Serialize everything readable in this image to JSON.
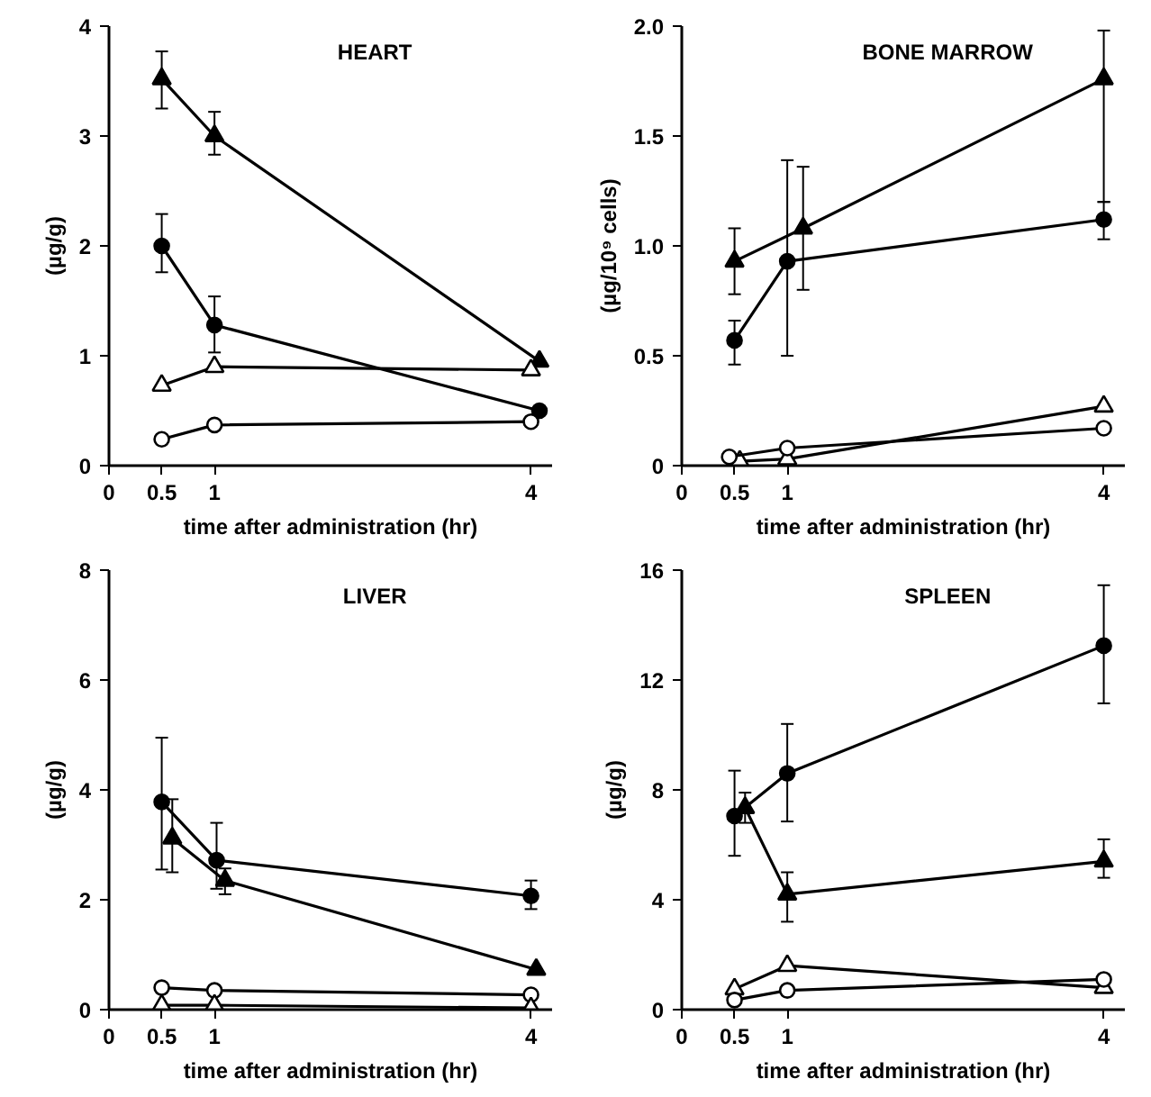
{
  "chart_data": [
    {
      "type": "line",
      "title": "HEART",
      "xlabel": "time after administration (hr)",
      "ylabel": "(µg/g)",
      "xlim": [
        0,
        4.2
      ],
      "xticks": [
        0,
        0.5,
        1,
        4
      ],
      "ylim": [
        0,
        4
      ],
      "yticks": [
        0,
        1,
        2,
        3,
        4
      ],
      "grid": false,
      "line_style": "solid",
      "series": [
        {
          "color": "#000000",
          "marker": "triangle",
          "x": [
            0.5,
            1,
            4.08
          ],
          "values": [
            3.52,
            3.0,
            0.95
          ],
          "errors": [
            [
              3.25,
              3.77
            ],
            [
              2.83,
              3.22
            ],
            null
          ]
        },
        {
          "color": "#000000",
          "marker": "circle",
          "x": [
            0.5,
            1,
            4.08
          ],
          "values": [
            2.0,
            1.28,
            0.5
          ],
          "errors": [
            [
              1.76,
              2.29
            ],
            [
              1.03,
              1.54
            ],
            null
          ]
        },
        {
          "color": "#ffffff",
          "marker": "triangle",
          "x": [
            0.5,
            1,
            4
          ],
          "values": [
            0.73,
            0.9,
            0.87
          ]
        },
        {
          "color": "#ffffff",
          "marker": "circle",
          "x": [
            0.5,
            1,
            4
          ],
          "values": [
            0.24,
            0.37,
            0.4
          ]
        }
      ]
    },
    {
      "type": "line",
      "title": "BONE MARROW",
      "xlabel": "time after administration (hr)",
      "ylabel": "(µg/10⁹ cells)",
      "xlim": [
        0,
        4.2
      ],
      "xticks": [
        0,
        0.5,
        1,
        4
      ],
      "ylim": [
        0,
        2
      ],
      "yticks": [
        0,
        0.5,
        {
          "value": 1,
          "label": "1.0"
        },
        1.5,
        {
          "value": 2,
          "label": "2.0"
        }
      ],
      "grid": false,
      "line_style": "solid",
      "series": [
        {
          "color": "#000000",
          "marker": "triangle",
          "x": [
            0.5,
            1.15,
            4
          ],
          "values": [
            0.93,
            1.08,
            1.76
          ],
          "errors": [
            [
              0.78,
              1.08
            ],
            [
              0.8,
              1.36
            ],
            [
              1.2,
              1.98
            ]
          ]
        },
        {
          "color": "#000000",
          "marker": "circle",
          "x": [
            0.5,
            1,
            4
          ],
          "values": [
            0.57,
            0.93,
            1.12
          ],
          "errors": [
            [
              0.46,
              0.66
            ],
            [
              0.5,
              1.39
            ],
            [
              1.03,
              1.2
            ]
          ]
        },
        {
          "color": "#ffffff",
          "marker": "triangle",
          "x": [
            0.55,
            1,
            4
          ],
          "values": [
            0.02,
            0.03,
            0.27
          ]
        },
        {
          "color": "#ffffff",
          "marker": "circle",
          "x": [
            0.45,
            1,
            4
          ],
          "values": [
            0.04,
            0.08,
            0.17
          ]
        }
      ]
    },
    {
      "type": "line",
      "title": "LIVER",
      "xlabel": "time after administration (hr)",
      "ylabel": "(µg/g)",
      "xlim": [
        0,
        4.2
      ],
      "xticks": [
        0,
        0.5,
        1,
        4
      ],
      "ylim": [
        0,
        8
      ],
      "yticks": [
        0,
        2,
        4,
        6,
        8
      ],
      "grid": false,
      "line_style": "solid",
      "series": [
        {
          "color": "#000000",
          "marker": "circle",
          "x": [
            0.5,
            1.02,
            4
          ],
          "values": [
            3.78,
            2.72,
            2.07
          ],
          "errors": [
            [
              2.55,
              4.95
            ],
            [
              2.2,
              3.4
            ],
            [
              1.83,
              2.35
            ]
          ]
        },
        {
          "color": "#000000",
          "marker": "triangle",
          "x": [
            0.6,
            1.1,
            4.05
          ],
          "values": [
            3.12,
            2.35,
            0.73
          ],
          "errors": [
            [
              2.5,
              3.83
            ],
            [
              2.1,
              2.57
            ],
            null
          ]
        },
        {
          "color": "#ffffff",
          "marker": "circle",
          "x": [
            0.5,
            1,
            4
          ],
          "values": [
            0.4,
            0.35,
            0.27
          ]
        },
        {
          "color": "#ffffff",
          "marker": "triangle",
          "x": [
            0.5,
            1,
            4
          ],
          "values": [
            0.08,
            0.08,
            0.03
          ]
        }
      ]
    },
    {
      "type": "line",
      "title": "SPLEEN",
      "xlabel": "time after administration (hr)",
      "ylabel": "(µg/g)",
      "xlim": [
        0,
        4.2
      ],
      "xticks": [
        0,
        0.5,
        1,
        4
      ],
      "ylim": [
        0,
        16
      ],
      "yticks": [
        0,
        4,
        8,
        12,
        16
      ],
      "grid": false,
      "line_style": "solid",
      "series": [
        {
          "color": "#000000",
          "marker": "circle",
          "x": [
            0.5,
            1,
            4
          ],
          "values": [
            7.05,
            8.6,
            13.25
          ],
          "errors": [
            [
              5.6,
              8.7
            ],
            [
              6.85,
              10.4
            ],
            [
              11.15,
              15.45
            ]
          ]
        },
        {
          "color": "#000000",
          "marker": "triangle",
          "x": [
            0.6,
            1,
            4
          ],
          "values": [
            7.35,
            4.2,
            5.4
          ],
          "errors": [
            [
              6.8,
              7.9
            ],
            [
              3.2,
              5.0
            ],
            [
              4.8,
              6.2
            ]
          ]
        },
        {
          "color": "#ffffff",
          "marker": "triangle",
          "x": [
            0.5,
            1,
            4
          ],
          "values": [
            0.75,
            1.6,
            0.8
          ]
        },
        {
          "color": "#ffffff",
          "marker": "circle",
          "x": [
            0.5,
            1,
            4
          ],
          "values": [
            0.35,
            0.7,
            1.1
          ]
        }
      ]
    }
  ]
}
